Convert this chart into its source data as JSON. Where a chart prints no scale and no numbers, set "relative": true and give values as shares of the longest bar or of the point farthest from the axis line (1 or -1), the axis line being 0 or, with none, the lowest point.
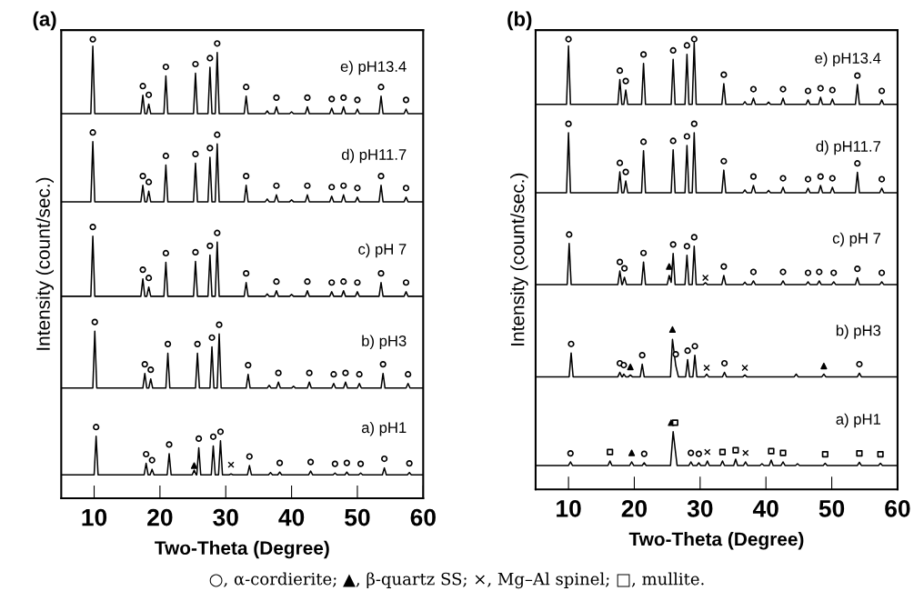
{
  "chart_data": [
    {
      "type": "line",
      "title": "(a)",
      "xlabel": "Two-Theta (Degree)",
      "ylabel": "Intensity (count/sec.)",
      "relative": true,
      "xlim": [
        5,
        60
      ],
      "xticks": [
        10,
        20,
        30,
        40,
        50,
        60
      ],
      "tick_labels": "x",
      "annotations": [
        "○, α-cordierite; ▲, β-quartz SS; ×, Mg–Al spinel; □, mullite."
      ],
      "series": [
        {
          "name": "e) pH13.4",
          "type": "line",
          "color": "#000000",
          "x": [
            5,
            9.5,
            9.8,
            10.1,
            17.1,
            17.4,
            17.7,
            18.0,
            18.3,
            18.6,
            20.6,
            20.9,
            21.2,
            25.1,
            25.4,
            25.7,
            27.3,
            27.6,
            27.9,
            28.4,
            28.7,
            29.0,
            32.8,
            33.1,
            33.4,
            36.0,
            36.3,
            36.6,
            37.4,
            37.7,
            38.0,
            39.7,
            40.0,
            40.3,
            42.1,
            42.4,
            42.7,
            45.8,
            46.1,
            46.4,
            47.6,
            47.9,
            48.2,
            49.7,
            50.0,
            50.3,
            53.3,
            53.6,
            53.9,
            57.1,
            57.4,
            57.7,
            60
          ],
          "values": [
            0.838,
            0.838,
            0.985,
            0.838,
            0.838,
            0.878,
            0.838,
            0.838,
            0.859,
            0.838,
            0.838,
            0.92,
            0.838,
            0.838,
            0.926,
            0.838,
            0.838,
            0.939,
            0.838,
            0.838,
            0.971,
            0.838,
            0.838,
            0.876,
            0.838,
            0.838,
            0.844,
            0.838,
            0.838,
            0.853,
            0.838,
            0.838,
            0.842,
            0.838,
            0.838,
            0.853,
            0.838,
            0.838,
            0.85,
            0.838,
            0.838,
            0.853,
            0.838,
            0.838,
            0.848,
            0.838,
            0.838,
            0.876,
            0.838,
            0.838,
            0.848,
            0.838,
            0.838
          ]
        },
        {
          "name": "d) pH11.7",
          "type": "line",
          "color": "#000000",
          "x": [
            5,
            9.5,
            9.8,
            10.1,
            17.1,
            17.4,
            17.7,
            18.0,
            18.3,
            18.6,
            20.6,
            20.9,
            21.2,
            25.1,
            25.4,
            25.7,
            27.3,
            27.6,
            27.9,
            28.4,
            28.7,
            29.0,
            32.8,
            33.1,
            33.4,
            36.0,
            36.3,
            36.6,
            37.4,
            37.7,
            38.0,
            39.7,
            40.0,
            40.3,
            42.1,
            42.4,
            42.7,
            45.8,
            46.1,
            46.4,
            47.6,
            47.9,
            48.2,
            49.7,
            50.0,
            50.3,
            53.3,
            53.6,
            53.9,
            57.1,
            57.4,
            57.7,
            60
          ],
          "values": [
            0.646,
            0.646,
            0.777,
            0.646,
            0.646,
            0.682,
            0.646,
            0.646,
            0.669,
            0.646,
            0.646,
            0.726,
            0.646,
            0.646,
            0.73,
            0.646,
            0.646,
            0.743,
            0.646,
            0.646,
            0.772,
            0.646,
            0.646,
            0.682,
            0.646,
            0.646,
            0.652,
            0.646,
            0.646,
            0.661,
            0.646,
            0.646,
            0.65,
            0.646,
            0.646,
            0.661,
            0.646,
            0.646,
            0.658,
            0.646,
            0.646,
            0.661,
            0.646,
            0.646,
            0.656,
            0.646,
            0.646,
            0.682,
            0.646,
            0.646,
            0.656,
            0.646,
            0.646
          ]
        },
        {
          "name": "c) pH 7",
          "type": "line",
          "color": "#000000",
          "x": [
            5,
            9.5,
            9.8,
            10.1,
            17.1,
            17.4,
            17.7,
            18.0,
            18.3,
            18.6,
            20.6,
            20.9,
            21.2,
            25.1,
            25.4,
            25.7,
            27.3,
            27.6,
            27.9,
            28.4,
            28.7,
            29.0,
            32.8,
            33.1,
            33.4,
            36.0,
            36.3,
            36.6,
            37.4,
            37.7,
            38.0,
            39.7,
            40.0,
            40.3,
            42.1,
            42.4,
            42.7,
            45.8,
            46.1,
            46.4,
            47.6,
            47.9,
            48.2,
            49.7,
            50.0,
            50.3,
            53.3,
            53.6,
            53.9,
            57.1,
            57.4,
            57.7,
            60
          ],
          "values": [
            0.44,
            0.44,
            0.571,
            0.44,
            0.44,
            0.478,
            0.44,
            0.44,
            0.46,
            0.44,
            0.44,
            0.514,
            0.44,
            0.44,
            0.516,
            0.44,
            0.44,
            0.53,
            0.44,
            0.44,
            0.558,
            0.44,
            0.44,
            0.47,
            0.44,
            0.44,
            0.445,
            0.44,
            0.44,
            0.452,
            0.44,
            0.44,
            0.444,
            0.44,
            0.44,
            0.452,
            0.44,
            0.44,
            0.45,
            0.44,
            0.44,
            0.452,
            0.44,
            0.44,
            0.45,
            0.44,
            0.44,
            0.47,
            0.44,
            0.44,
            0.45,
            0.44,
            0.44
          ]
        },
        {
          "name": "b) pH3",
          "type": "line",
          "color": "#000000",
          "x": [
            5,
            9.8,
            10.1,
            10.4,
            17.4,
            17.7,
            18.0,
            18.3,
            18.6,
            18.9,
            20.9,
            21.2,
            21.5,
            25.4,
            25.7,
            26.0,
            27.6,
            27.9,
            28.2,
            28.7,
            29.0,
            29.3,
            33.1,
            33.4,
            33.7,
            36.3,
            36.6,
            36.9,
            37.7,
            38.0,
            38.3,
            40.0,
            40.3,
            40.6,
            42.4,
            42.7,
            43.0,
            46.1,
            46.4,
            46.7,
            47.9,
            48.2,
            48.5,
            50.0,
            50.3,
            50.6,
            53.6,
            53.9,
            54.2,
            57.4,
            57.7,
            58.0,
            60
          ],
          "values": [
            0.24,
            0.24,
            0.364,
            0.24,
            0.24,
            0.272,
            0.24,
            0.24,
            0.26,
            0.24,
            0.24,
            0.316,
            0.24,
            0.24,
            0.316,
            0.24,
            0.24,
            0.33,
            0.24,
            0.24,
            0.358,
            0.24,
            0.24,
            0.27,
            0.24,
            0.24,
            0.246,
            0.24,
            0.24,
            0.253,
            0.24,
            0.24,
            0.244,
            0.24,
            0.24,
            0.253,
            0.24,
            0.24,
            0.25,
            0.24,
            0.24,
            0.253,
            0.24,
            0.24,
            0.25,
            0.24,
            0.24,
            0.272,
            0.24,
            0.24,
            0.25,
            0.24,
            0.24
          ]
        },
        {
          "name": "a) pH1",
          "type": "line",
          "color": "#000000",
          "x": [
            5,
            10.0,
            10.3,
            10.6,
            17.6,
            17.9,
            18.2,
            18.5,
            18.8,
            19.1,
            21.1,
            21.4,
            21.7,
            24.9,
            25.2,
            25.5,
            25.6,
            25.9,
            26.2,
            27.8,
            28.1,
            28.4,
            28.9,
            29.2,
            29.5,
            30.5,
            30.8,
            31.1,
            33.3,
            33.6,
            33.9,
            36.5,
            36.8,
            37.1,
            37.9,
            38.2,
            38.5,
            42.6,
            42.9,
            43.2,
            46.3,
            46.6,
            46.9,
            48.1,
            48.4,
            48.7,
            50.2,
            50.5,
            50.8,
            53.8,
            54.1,
            54.4,
            57.6,
            57.9,
            58.2,
            60
          ],
          "values": [
            0.051,
            0.051,
            0.135,
            0.051,
            0.051,
            0.076,
            0.051,
            0.051,
            0.063,
            0.051,
            0.051,
            0.097,
            0.051,
            0.051,
            0.061,
            0.051,
            0.051,
            0.11,
            0.051,
            0.051,
            0.114,
            0.051,
            0.051,
            0.125,
            0.051,
            0.051,
            0.053,
            0.051,
            0.051,
            0.071,
            0.051,
            0.051,
            0.056,
            0.051,
            0.051,
            0.057,
            0.051,
            0.051,
            0.059,
            0.051,
            0.051,
            0.055,
            0.051,
            0.051,
            0.057,
            0.051,
            0.051,
            0.055,
            0.051,
            0.051,
            0.066,
            0.051,
            0.051,
            0.056,
            0.051,
            0.051
          ]
        },
        {
          "type": "scatter",
          "marker": "circle",
          "color": "#000000",
          "x": [
            9.8,
            17.4,
            18.3,
            20.9,
            25.4,
            27.6,
            28.7,
            33.1,
            37.7,
            42.4,
            46.1,
            47.9,
            50.0,
            53.6,
            57.4,
            9.8,
            17.4,
            18.3,
            20.9,
            25.4,
            27.6,
            28.7,
            33.1,
            37.7,
            42.4,
            46.1,
            47.9,
            50.0,
            53.6,
            57.4,
            9.8,
            17.4,
            18.3,
            20.9,
            25.4,
            27.6,
            28.7,
            33.1,
            37.7,
            42.4,
            46.1,
            47.9,
            50.0,
            53.6,
            57.4,
            10.1,
            17.7,
            18.6,
            21.2,
            25.7,
            27.9,
            29.0,
            33.4,
            38.0,
            42.7,
            46.4,
            48.2,
            50.3,
            53.9,
            57.7,
            10.3,
            17.9,
            18.8,
            21.4,
            25.9,
            28.1,
            29.2,
            33.6,
            38.2,
            42.9,
            46.6,
            48.4,
            50.5,
            54.1,
            57.9
          ],
          "values": [
            1.0,
            0.898,
            0.879,
            0.94,
            0.946,
            0.959,
            0.991,
            0.896,
            0.873,
            0.873,
            0.87,
            0.873,
            0.868,
            0.896,
            0.868,
            0.797,
            0.702,
            0.689,
            0.746,
            0.75,
            0.763,
            0.792,
            0.702,
            0.681,
            0.681,
            0.678,
            0.681,
            0.676,
            0.702,
            0.676,
            0.591,
            0.498,
            0.48,
            0.534,
            0.536,
            0.55,
            0.578,
            0.49,
            0.472,
            0.472,
            0.47,
            0.472,
            0.47,
            0.49,
            0.47,
            0.384,
            0.292,
            0.28,
            0.336,
            0.336,
            0.35,
            0.378,
            0.29,
            0.273,
            0.273,
            0.27,
            0.273,
            0.27,
            0.292,
            0.27,
            0.155,
            0.096,
            0.083,
            0.117,
            0.13,
            0.134,
            0.145,
            0.091,
            0.077,
            0.079,
            0.075,
            0.077,
            0.075,
            0.086,
            0.076
          ]
        },
        {
          "type": "scatter",
          "marker": "triangle",
          "color": "#000000",
          "x": [
            25.2
          ],
          "values": [
            0.071
          ]
        },
        {
          "type": "scatter",
          "marker": "cross",
          "color": "#000000",
          "x": [
            30.8
          ],
          "values": [
            0.073
          ]
        }
      ]
    },
    {
      "type": "line",
      "title": "(b)",
      "xlabel": "Two-Theta (Degree)",
      "ylabel": "Intensity (count/sec.)",
      "relative": true,
      "xlim": [
        5,
        60
      ],
      "xticks": [
        10,
        20,
        30,
        40,
        50,
        60
      ],
      "tick_labels": "x",
      "series": [
        {
          "name": "e) pH13.4",
          "type": "line",
          "color": "#000000",
          "x": [
            5,
            9.7,
            10.0,
            10.3,
            17.5,
            17.8,
            18.1,
            18.4,
            18.7,
            19.0,
            21.1,
            21.4,
            21.7,
            25.6,
            25.9,
            26.2,
            27.7,
            28.0,
            28.3,
            28.8,
            29.1,
            29.4,
            33.3,
            33.6,
            33.9,
            36.5,
            36.8,
            37.1,
            37.8,
            38.1,
            38.4,
            40.1,
            40.4,
            40.7,
            42.3,
            42.6,
            42.9,
            46.1,
            46.4,
            46.7,
            48.0,
            48.3,
            48.6,
            49.8,
            50.1,
            50.4,
            53.6,
            53.9,
            54.2,
            57.3,
            57.6,
            57.9,
            60
          ],
          "values": [
            0.855,
            0.855,
            0.985,
            0.855,
            0.855,
            0.91,
            0.855,
            0.855,
            0.887,
            0.855,
            0.855,
            0.946,
            0.855,
            0.855,
            0.955,
            0.855,
            0.855,
            0.966,
            0.855,
            0.855,
            0.992,
            0.855,
            0.855,
            0.901,
            0.855,
            0.855,
            0.861,
            0.855,
            0.855,
            0.869,
            0.855,
            0.855,
            0.86,
            0.855,
            0.855,
            0.869,
            0.855,
            0.855,
            0.865,
            0.855,
            0.855,
            0.871,
            0.855,
            0.855,
            0.867,
            0.855,
            0.855,
            0.899,
            0.855,
            0.855,
            0.865,
            0.855,
            0.855
          ]
        },
        {
          "name": "d) pH11.7",
          "type": "line",
          "color": "#000000",
          "x": [
            5,
            9.7,
            10.0,
            10.3,
            17.5,
            17.8,
            18.1,
            18.4,
            18.7,
            19.0,
            21.1,
            21.4,
            21.7,
            25.6,
            25.9,
            26.2,
            27.7,
            28.0,
            28.3,
            28.8,
            29.1,
            29.4,
            33.3,
            33.6,
            33.9,
            36.5,
            36.8,
            37.1,
            37.8,
            38.1,
            38.4,
            40.1,
            40.4,
            40.7,
            42.3,
            42.6,
            42.9,
            46.1,
            46.4,
            46.7,
            48.0,
            48.3,
            48.6,
            49.8,
            50.1,
            50.4,
            53.6,
            53.9,
            54.2,
            57.3,
            57.6,
            57.9,
            60
          ],
          "values": [
            0.659,
            0.659,
            0.792,
            0.659,
            0.659,
            0.705,
            0.659,
            0.659,
            0.685,
            0.659,
            0.659,
            0.752,
            0.659,
            0.659,
            0.754,
            0.659,
            0.659,
            0.764,
            0.659,
            0.659,
            0.792,
            0.659,
            0.659,
            0.709,
            0.659,
            0.659,
            0.665,
            0.659,
            0.659,
            0.675,
            0.659,
            0.659,
            0.664,
            0.659,
            0.659,
            0.671,
            0.659,
            0.659,
            0.669,
            0.659,
            0.659,
            0.675,
            0.659,
            0.659,
            0.671,
            0.659,
            0.659,
            0.704,
            0.659,
            0.659,
            0.669,
            0.659,
            0.659
          ]
        },
        {
          "name": "c) pH 7",
          "type": "line",
          "color": "#000000",
          "x": [
            5,
            9.8,
            10.1,
            10.4,
            17.5,
            17.8,
            18.1,
            18.2,
            18.5,
            18.8,
            21.1,
            21.4,
            21.7,
            25.0,
            25.3,
            25.6,
            25.9,
            26.2,
            27.7,
            28.0,
            28.3,
            28.8,
            29.1,
            29.4,
            30.5,
            30.8,
            31.1,
            33.3,
            33.6,
            33.9,
            36.5,
            36.8,
            37.1,
            37.8,
            38.1,
            38.4,
            42.3,
            42.6,
            42.9,
            46.1,
            46.4,
            46.7,
            47.8,
            48.1,
            48.4,
            50.0,
            50.3,
            50.6,
            53.6,
            53.9,
            54.2,
            57.3,
            57.6,
            57.9,
            60
          ],
          "values": [
            0.455,
            0.455,
            0.546,
            0.455,
            0.455,
            0.485,
            0.455,
            0.455,
            0.471,
            0.455,
            0.455,
            0.505,
            0.455,
            0.455,
            0.475,
            0.46,
            0.524,
            0.455,
            0.455,
            0.52,
            0.455,
            0.455,
            0.54,
            0.455,
            0.455,
            0.459,
            0.455,
            0.455,
            0.475,
            0.455,
            0.455,
            0.46,
            0.455,
            0.455,
            0.463,
            0.455,
            0.455,
            0.463,
            0.455,
            0.455,
            0.461,
            0.455,
            0.455,
            0.463,
            0.455,
            0.455,
            0.461,
            0.455,
            0.455,
            0.47,
            0.455,
            0.455,
            0.461,
            0.455,
            0.455
          ]
        },
        {
          "name": "b) pH3",
          "type": "line",
          "color": "#000000",
          "x": [
            5,
            10.1,
            10.4,
            10.7,
            17.5,
            17.8,
            18.1,
            18.2,
            18.4,
            18.7,
            19.1,
            19.4,
            19.7,
            20.9,
            21.2,
            21.5,
            25.5,
            25.8,
            26.3,
            26.7,
            27.8,
            28.1,
            28.4,
            28.9,
            29.2,
            29.5,
            30.7,
            31.0,
            31.3,
            33.4,
            33.7,
            34.0,
            36.5,
            36.8,
            37.1,
            44.3,
            44.6,
            44.9,
            48.5,
            48.8,
            49.1,
            53.9,
            54.2,
            54.5,
            60
          ],
          "values": [
            0.25,
            0.25,
            0.303,
            0.25,
            0.25,
            0.26,
            0.25,
            0.25,
            0.256,
            0.25,
            0.25,
            0.254,
            0.25,
            0.25,
            0.278,
            0.25,
            0.25,
            0.333,
            0.275,
            0.25,
            0.25,
            0.288,
            0.25,
            0.25,
            0.298,
            0.25,
            0.25,
            0.256,
            0.25,
            0.25,
            0.26,
            0.25,
            0.25,
            0.254,
            0.25,
            0.25,
            0.256,
            0.25,
            0.25,
            0.256,
            0.25,
            0.25,
            0.258,
            0.25,
            0.25
          ]
        },
        {
          "name": "a) pH1",
          "type": "line",
          "color": "#000000",
          "x": [
            5,
            10.0,
            10.3,
            10.6,
            16.0,
            16.3,
            16.6,
            19.3,
            19.6,
            19.9,
            21.2,
            21.5,
            21.8,
            25.5,
            25.9,
            26.5,
            28.3,
            28.6,
            28.9,
            29.5,
            29.8,
            30.1,
            30.8,
            31.1,
            31.4,
            33.1,
            33.4,
            33.7,
            35.1,
            35.4,
            35.7,
            36.6,
            36.9,
            37.2,
            39.1,
            39.4,
            39.7,
            40.5,
            40.8,
            41.1,
            42.3,
            42.6,
            42.9,
            44.5,
            44.8,
            45.1,
            48.7,
            49.0,
            49.3,
            53.9,
            54.2,
            54.5,
            57.1,
            57.4,
            57.7,
            60
          ],
          "values": [
            0.053,
            0.053,
            0.061,
            0.053,
            0.053,
            0.063,
            0.053,
            0.053,
            0.061,
            0.053,
            0.053,
            0.059,
            0.053,
            0.053,
            0.128,
            0.053,
            0.053,
            0.061,
            0.053,
            0.053,
            0.059,
            0.053,
            0.053,
            0.063,
            0.053,
            0.053,
            0.063,
            0.053,
            0.053,
            0.067,
            0.053,
            0.053,
            0.061,
            0.053,
            0.053,
            0.057,
            0.053,
            0.053,
            0.065,
            0.053,
            0.053,
            0.061,
            0.053,
            0.053,
            0.057,
            0.053,
            0.053,
            0.058,
            0.053,
            0.053,
            0.06,
            0.053,
            0.053,
            0.058,
            0.053,
            0.053
          ]
        },
        {
          "type": "scatter",
          "marker": "circle",
          "color": "#000000",
          "x": [
            10.0,
            17.8,
            18.7,
            21.4,
            25.9,
            28.0,
            29.1,
            33.6,
            38.1,
            42.6,
            46.4,
            48.3,
            50.1,
            53.9,
            57.6,
            10.0,
            17.8,
            18.7,
            21.4,
            25.9,
            28.0,
            29.1,
            33.6,
            38.1,
            42.6,
            46.4,
            48.3,
            50.1,
            53.9,
            57.6,
            10.1,
            17.8,
            18.5,
            21.4,
            25.9,
            28.0,
            29.1,
            33.6,
            38.1,
            42.6,
            46.4,
            48.1,
            50.3,
            53.9,
            57.6,
            10.4,
            17.8,
            18.4,
            21.2,
            26.3,
            28.1,
            29.2,
            33.7,
            54.2,
            10.3,
            21.5,
            28.6,
            29.8
          ],
          "values": [
            1.0,
            0.93,
            0.907,
            0.966,
            0.975,
            0.986,
            1.0,
            0.921,
            0.889,
            0.889,
            0.885,
            0.891,
            0.887,
            0.919,
            0.885,
            0.812,
            0.725,
            0.705,
            0.772,
            0.774,
            0.784,
            0.812,
            0.729,
            0.695,
            0.691,
            0.689,
            0.695,
            0.691,
            0.724,
            0.689,
            0.566,
            0.505,
            0.491,
            0.525,
            0.544,
            0.54,
            0.56,
            0.495,
            0.483,
            0.483,
            0.481,
            0.483,
            0.481,
            0.49,
            0.481,
            0.323,
            0.28,
            0.276,
            0.298,
            0.3,
            0.308,
            0.318,
            0.28,
            0.278,
            0.08,
            0.079,
            0.081,
            0.079
          ]
        },
        {
          "type": "scatter",
          "marker": "triangle",
          "color": "#000000",
          "x": [
            25.3,
            19.4,
            25.8,
            48.8,
            19.6,
            25.6
          ],
          "values": [
            0.495,
            0.272,
            0.355,
            0.274,
            0.081,
            0.148
          ]
        },
        {
          "type": "scatter",
          "marker": "cross",
          "color": "#000000",
          "x": [
            30.8,
            31.0,
            36.8,
            31.1,
            36.9
          ],
          "values": [
            0.47,
            0.27,
            0.27,
            0.083,
            0.081
          ]
        },
        {
          "type": "scatter",
          "marker": "square",
          "color": "#000000",
          "x": [
            16.3,
            26.2,
            33.4,
            35.4,
            40.8,
            42.6,
            49.0,
            54.2,
            57.4
          ],
          "values": [
            0.083,
            0.148,
            0.083,
            0.087,
            0.085,
            0.081,
            0.078,
            0.08,
            0.078
          ]
        }
      ]
    }
  ]
}
